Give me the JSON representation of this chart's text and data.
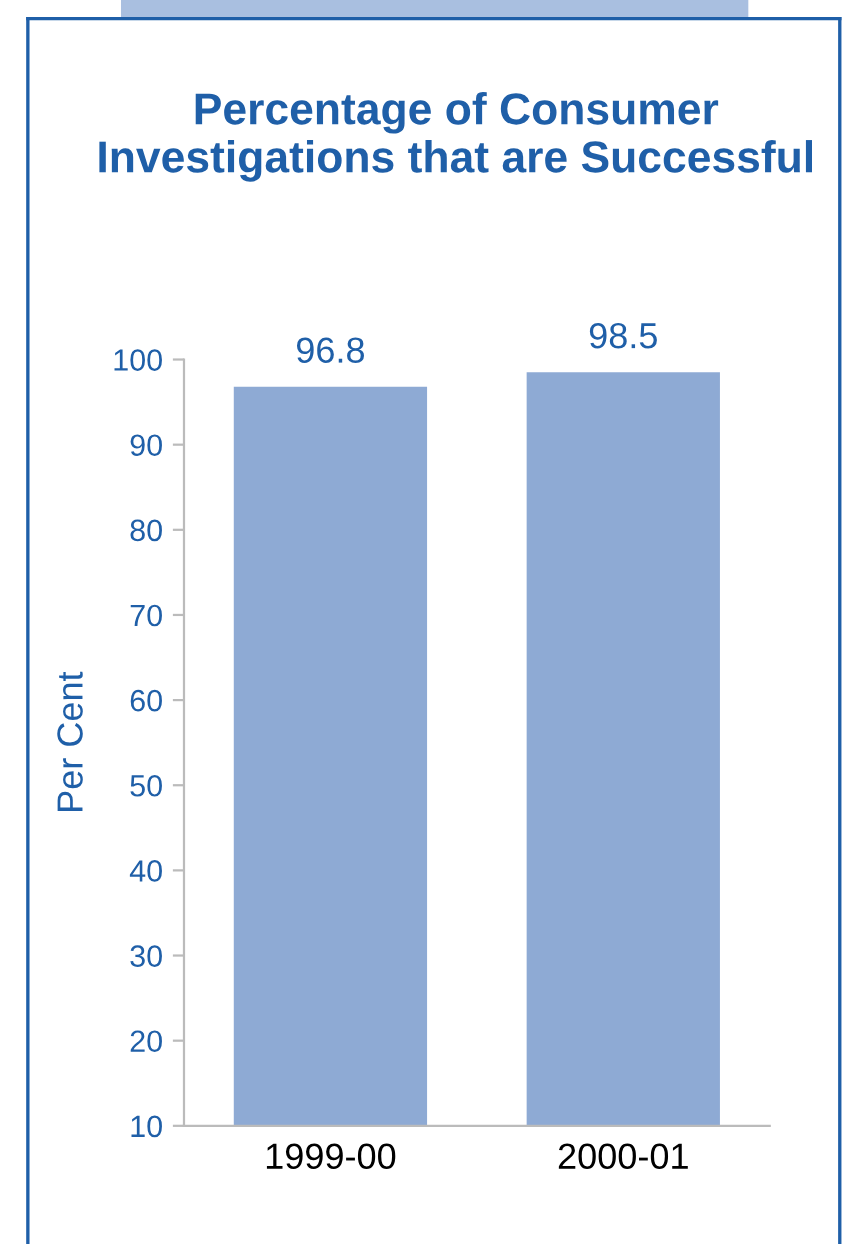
{
  "chart_data": {
    "type": "bar",
    "title": "Percentage of Consumer Investigations that are Successful",
    "ylabel": "Per Cent",
    "categories": [
      "1999-00",
      "2000-01"
    ],
    "values": [
      96.8,
      98.5
    ],
    "color": "#8eaad4",
    "ylim": [
      10,
      100
    ],
    "yticks": [
      10,
      20,
      30,
      40,
      50,
      60,
      70,
      80,
      90,
      100
    ],
    "grid": false,
    "data_labels": true
  }
}
